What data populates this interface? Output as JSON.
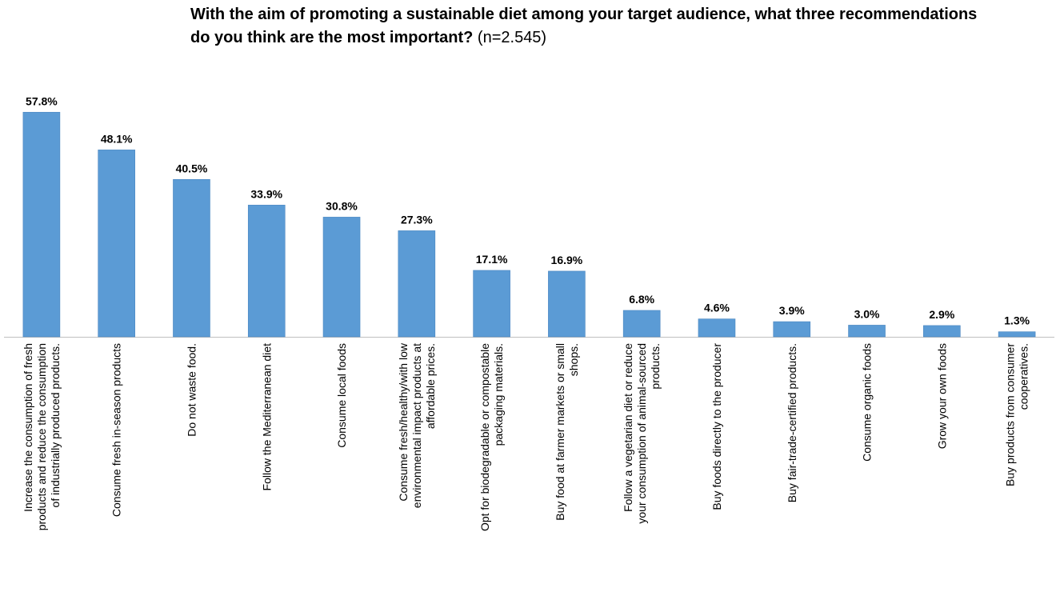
{
  "chart_data": {
    "type": "bar",
    "title": "With the aim of promoting a sustainable diet among your target audience, what three recommendations do you think are the most important?",
    "subtitle": "(n=2.545)",
    "xlabel": "",
    "ylabel": "",
    "ylim": [
      0,
      70
    ],
    "grid": false,
    "legend": "none",
    "bar_color": "#5B9BD5",
    "categories": [
      [
        "Increase the consumption of fresh",
        "products and reduce the consumption",
        "of industrially produced products."
      ],
      [
        "Consume fresh in-season products"
      ],
      [
        "Do not waste food."
      ],
      [
        "Follow the Mediterranean diet"
      ],
      [
        "Consume local foods"
      ],
      [
        "Consume fresh/healthy/with low",
        "environmental impact products at",
        "affordable prices."
      ],
      [
        "Opt for biodegradable or compostable",
        "packaging materials."
      ],
      [
        "Buy food at farmer markets or small",
        "shops."
      ],
      [
        "Follow a vegetarian diet or reduce",
        "your consumption of animal-sourced",
        "products."
      ],
      [
        "Buy foods directly to the producer"
      ],
      [
        "Buy fair-trade-certified products."
      ],
      [
        "Consume organic foods"
      ],
      [
        "Grow your own foods"
      ],
      [
        "Buy products from consumer",
        "cooperatives."
      ]
    ],
    "values": [
      57.8,
      48.1,
      40.5,
      33.9,
      30.8,
      27.3,
      17.1,
      16.9,
      6.8,
      4.6,
      3.9,
      3.0,
      2.9,
      1.3
    ],
    "value_labels": [
      "57.8%",
      "48.1%",
      "40.5%",
      "33.9%",
      "30.8%",
      "27.3%",
      "17.1%",
      "16.9%",
      "6.8%",
      "4.6%",
      "3.9%",
      "3.0%",
      "2.9%",
      "1.3%"
    ]
  }
}
